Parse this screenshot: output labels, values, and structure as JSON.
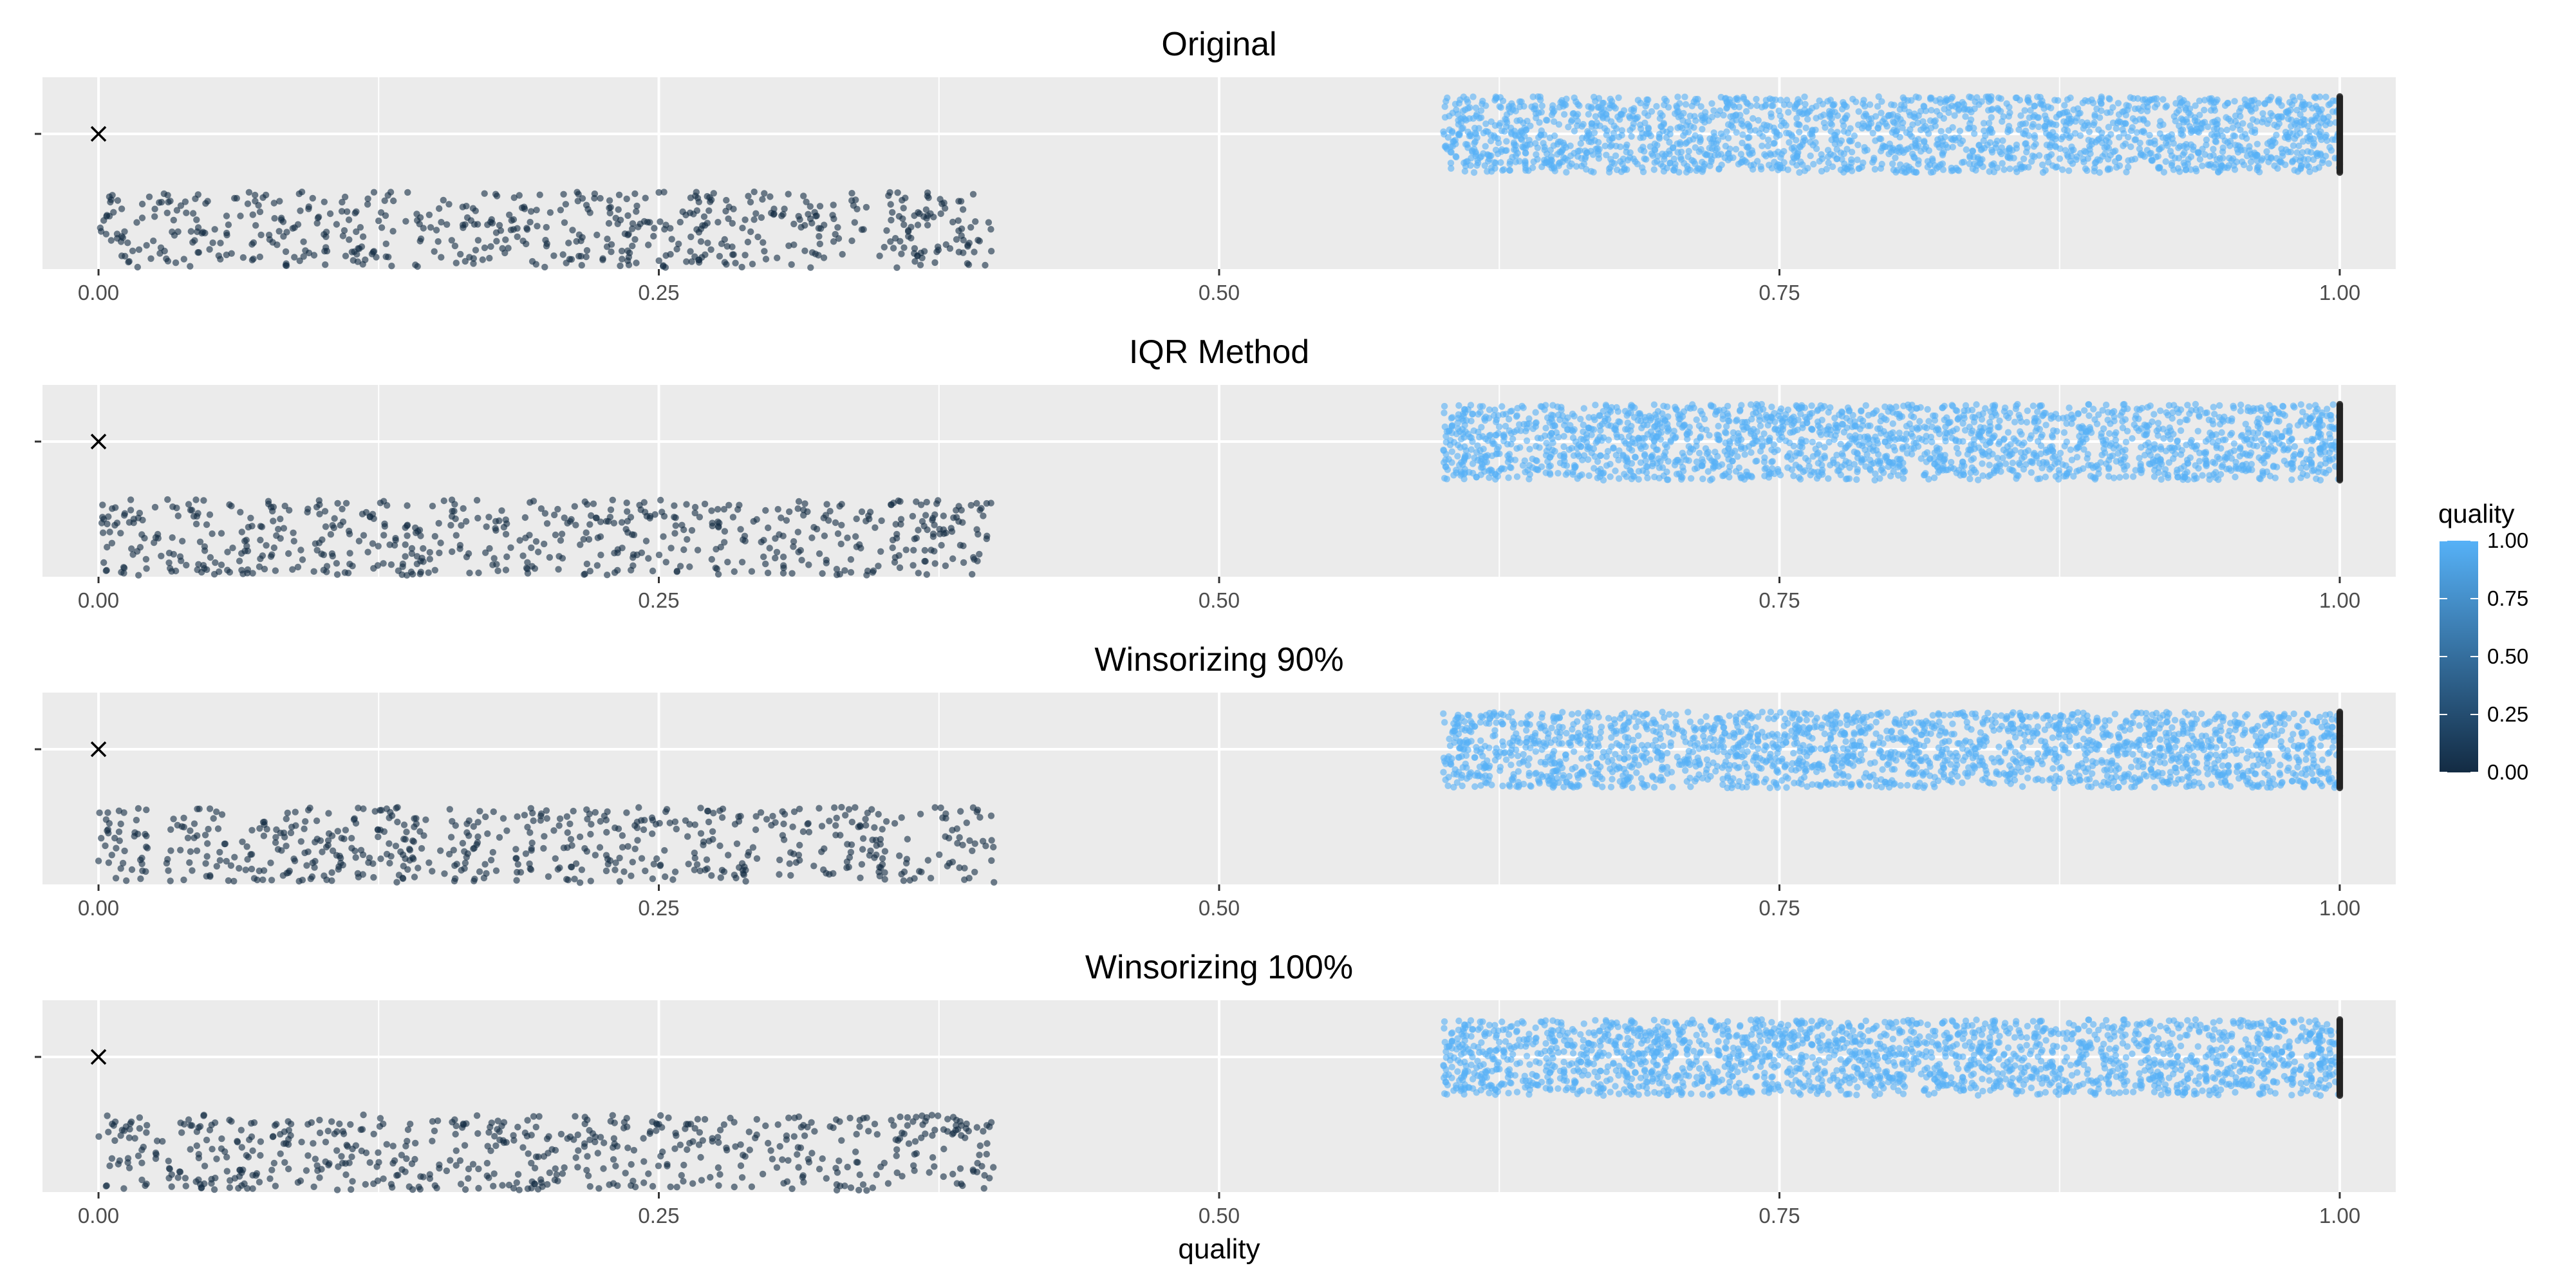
{
  "chart_data": {
    "type": "scatter",
    "layout": "4 vertically stacked facets, shared x axis",
    "xlabel": "quality",
    "xlim": [
      -0.025,
      1.025
    ],
    "x_ticks": [
      0,
      0.25,
      0.5,
      0.75,
      1
    ],
    "x_tick_labels": [
      "0.00",
      "0.25",
      "0.50",
      "0.75",
      "1.00"
    ],
    "y_axis": "single unlabeled categorical level per facet (points jittered vertically)",
    "grid": true,
    "panel_background": "#ebebeb",
    "color_scale": {
      "variable": "quality",
      "low_color": "#132b43",
      "high_color": "#56b1f7",
      "range": [
        0,
        1
      ],
      "breaks": [
        0,
        0.25,
        0.5,
        0.75,
        1
      ],
      "break_labels": [
        "0.00",
        "0.25",
        "0.50",
        "0.75",
        "1.00"
      ],
      "legend_title": "quality",
      "legend_placement": "right"
    },
    "marker": {
      "shape": "x",
      "x": 0,
      "color": "#000000"
    },
    "facets": [
      {
        "title": "Original",
        "clusters": [
          {
            "x_range": [
              0.0,
              0.4
            ],
            "count": 600,
            "jitter_band": "lower",
            "color_value": 0
          },
          {
            "x_range": [
              0.6,
              1.0
            ],
            "count": 2000,
            "jitter_band": "upper",
            "color_value": 1
          }
        ]
      },
      {
        "title": "IQR Method",
        "clusters": [
          {
            "x_range": [
              0.0,
              0.4
            ],
            "count": 600,
            "jitter_band": "lower",
            "color_value": 0
          },
          {
            "x_range": [
              0.6,
              1.0
            ],
            "count": 2000,
            "jitter_band": "upper",
            "color_value": 1
          }
        ]
      },
      {
        "title": "Winsorizing 90%",
        "clusters": [
          {
            "x_range": [
              0.0,
              0.4
            ],
            "count": 600,
            "jitter_band": "lower",
            "color_value": 0
          },
          {
            "x_range": [
              0.6,
              1.0
            ],
            "count": 2000,
            "jitter_band": "upper",
            "color_value": 1
          }
        ]
      },
      {
        "title": "Winsorizing 100%",
        "clusters": [
          {
            "x_range": [
              0.0,
              0.4
            ],
            "count": 600,
            "jitter_band": "lower",
            "color_value": 0
          },
          {
            "x_range": [
              0.6,
              1.0
            ],
            "count": 2000,
            "jitter_band": "upper",
            "color_value": 1
          }
        ]
      }
    ]
  }
}
